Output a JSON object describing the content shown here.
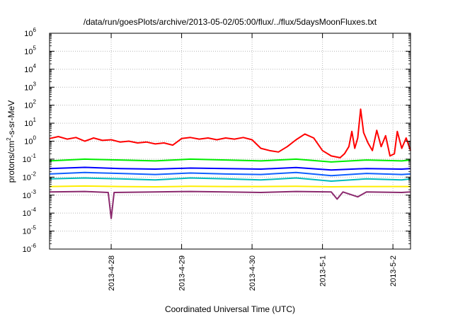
{
  "chart_data": {
    "type": "line",
    "title": "/data/run/goesPlots/archive/2013-05-02/05:00/flux/../flux/5daysMoonFluxes.txt",
    "xlabel": "Coordinated Universal Time (UTC)",
    "ylabel_parts": [
      "protons/cm",
      "2",
      "-s-sr-MeV"
    ],
    "yscale": "log",
    "ylim_exp": [
      -6,
      6
    ],
    "y_ticks": [
      {
        "base": "10",
        "exp": "-6",
        "value": -6
      },
      {
        "base": "10",
        "exp": "-5",
        "value": -5
      },
      {
        "base": "10",
        "exp": "-4",
        "value": -4
      },
      {
        "base": "10",
        "exp": "-3",
        "value": -3
      },
      {
        "base": "10",
        "exp": "-2",
        "value": -2
      },
      {
        "base": "10",
        "exp": "-1",
        "value": -1
      },
      {
        "base": "10",
        "exp": "0",
        "value": 0
      },
      {
        "base": "10",
        "exp": "1",
        "value": 1
      },
      {
        "base": "10",
        "exp": "2",
        "value": 2
      },
      {
        "base": "10",
        "exp": "3",
        "value": 3
      },
      {
        "base": "10",
        "exp": "4",
        "value": 4
      },
      {
        "base": "10",
        "exp": "5",
        "value": 5
      },
      {
        "base": "10",
        "exp": "6",
        "value": 6
      }
    ],
    "xlim": [
      "2013-04-27T03:00",
      "2013-05-02T06:00"
    ],
    "x_ticks": [
      {
        "label": "2013-4-28",
        "value": "2013-04-28T00:00"
      },
      {
        "label": "2013-4-29",
        "value": "2013-04-29T00:00"
      },
      {
        "label": "2013-4-30",
        "value": "2013-04-30T00:00"
      },
      {
        "label": "2013-5-1",
        "value": "2013-05-01T00:00"
      },
      {
        "label": "2013-5-2",
        "value": "2013-05-02T00:00"
      }
    ],
    "grid": true,
    "legend": "none",
    "series": [
      {
        "color": "#ff0000",
        "points": [
          [
            "2013-04-27T03:00",
            1.4
          ],
          [
            "2013-04-27T06:00",
            1.8
          ],
          [
            "2013-04-27T09:00",
            1.3
          ],
          [
            "2013-04-27T12:00",
            1.6
          ],
          [
            "2013-04-27T15:00",
            1.0
          ],
          [
            "2013-04-27T18:00",
            1.5
          ],
          [
            "2013-04-27T21:00",
            1.1
          ],
          [
            "2013-04-28T00:00",
            1.2
          ],
          [
            "2013-04-28T03:00",
            0.9
          ],
          [
            "2013-04-28T06:00",
            1.0
          ],
          [
            "2013-04-28T09:00",
            0.8
          ],
          [
            "2013-04-28T12:00",
            0.9
          ],
          [
            "2013-04-28T15:00",
            0.7
          ],
          [
            "2013-04-28T18:00",
            0.8
          ],
          [
            "2013-04-28T21:00",
            0.6
          ],
          [
            "2013-04-29T00:00",
            1.4
          ],
          [
            "2013-04-29T03:00",
            1.6
          ],
          [
            "2013-04-29T06:00",
            1.3
          ],
          [
            "2013-04-29T09:00",
            1.5
          ],
          [
            "2013-04-29T12:00",
            1.2
          ],
          [
            "2013-04-29T15:00",
            1.5
          ],
          [
            "2013-04-29T18:00",
            1.3
          ],
          [
            "2013-04-29T21:00",
            1.6
          ],
          [
            "2013-04-30T00:00",
            1.2
          ],
          [
            "2013-04-30T03:00",
            0.4
          ],
          [
            "2013-04-30T06:00",
            0.3
          ],
          [
            "2013-04-30T09:00",
            0.25
          ],
          [
            "2013-04-30T12:00",
            0.5
          ],
          [
            "2013-04-30T15:00",
            1.2
          ],
          [
            "2013-04-30T18:00",
            2.5
          ],
          [
            "2013-04-30T21:00",
            1.5
          ],
          [
            "2013-05-01T00:00",
            0.3
          ],
          [
            "2013-05-01T03:00",
            0.15
          ],
          [
            "2013-05-01T06:00",
            0.12
          ],
          [
            "2013-05-01T07:30",
            0.2
          ],
          [
            "2013-05-01T09:00",
            0.5
          ],
          [
            "2013-05-01T10:00",
            3.5
          ],
          [
            "2013-05-01T11:00",
            0.4
          ],
          [
            "2013-05-01T12:00",
            1.5
          ],
          [
            "2013-05-01T13:00",
            60
          ],
          [
            "2013-05-01T14:00",
            3.0
          ],
          [
            "2013-05-01T15:30",
            0.8
          ],
          [
            "2013-05-01T17:00",
            0.3
          ],
          [
            "2013-05-01T18:30",
            4.0
          ],
          [
            "2013-05-01T20:00",
            0.5
          ],
          [
            "2013-05-01T21:30",
            2.0
          ],
          [
            "2013-05-01T23:00",
            0.15
          ],
          [
            "2013-05-02T00:30",
            0.2
          ],
          [
            "2013-05-02T01:30",
            3.5
          ],
          [
            "2013-05-02T03:00",
            0.4
          ],
          [
            "2013-05-02T04:30",
            1.5
          ],
          [
            "2013-05-02T06:00",
            0.3
          ]
        ]
      },
      {
        "color": "#00ee00",
        "points": [
          [
            "2013-04-27T03:00",
            0.08
          ],
          [
            "2013-04-27T15:00",
            0.1
          ],
          [
            "2013-04-28T03:00",
            0.09
          ],
          [
            "2013-04-28T15:00",
            0.08
          ],
          [
            "2013-04-29T03:00",
            0.1
          ],
          [
            "2013-04-29T15:00",
            0.09
          ],
          [
            "2013-04-30T03:00",
            0.08
          ],
          [
            "2013-04-30T15:00",
            0.1
          ],
          [
            "2013-05-01T03:00",
            0.07
          ],
          [
            "2013-05-01T15:00",
            0.09
          ],
          [
            "2013-05-02T03:00",
            0.08
          ],
          [
            "2013-05-02T06:00",
            0.09
          ]
        ]
      },
      {
        "color": "#0000ff",
        "points": [
          [
            "2013-04-27T03:00",
            0.03
          ],
          [
            "2013-04-27T15:00",
            0.035
          ],
          [
            "2013-04-28T03:00",
            0.03
          ],
          [
            "2013-04-28T15:00",
            0.028
          ],
          [
            "2013-04-29T03:00",
            0.032
          ],
          [
            "2013-04-29T15:00",
            0.03
          ],
          [
            "2013-04-30T03:00",
            0.028
          ],
          [
            "2013-04-30T15:00",
            0.034
          ],
          [
            "2013-05-01T03:00",
            0.025
          ],
          [
            "2013-05-01T15:00",
            0.03
          ],
          [
            "2013-05-02T03:00",
            0.028
          ],
          [
            "2013-05-02T06:00",
            0.03
          ]
        ]
      },
      {
        "color": "#1060ff",
        "points": [
          [
            "2013-04-27T03:00",
            0.015
          ],
          [
            "2013-04-27T15:00",
            0.018
          ],
          [
            "2013-04-28T03:00",
            0.016
          ],
          [
            "2013-04-28T15:00",
            0.014
          ],
          [
            "2013-04-29T03:00",
            0.017
          ],
          [
            "2013-04-29T15:00",
            0.015
          ],
          [
            "2013-04-30T03:00",
            0.014
          ],
          [
            "2013-04-30T15:00",
            0.018
          ],
          [
            "2013-05-01T03:00",
            0.012
          ],
          [
            "2013-05-01T15:00",
            0.016
          ],
          [
            "2013-05-02T03:00",
            0.014
          ],
          [
            "2013-05-02T06:00",
            0.015
          ]
        ]
      },
      {
        "color": "#00bbbb",
        "points": [
          [
            "2013-04-27T03:00",
            0.008
          ],
          [
            "2013-04-27T15:00",
            0.009
          ],
          [
            "2013-04-28T03:00",
            0.008
          ],
          [
            "2013-04-28T15:00",
            0.007
          ],
          [
            "2013-04-29T03:00",
            0.009
          ],
          [
            "2013-04-29T15:00",
            0.008
          ],
          [
            "2013-04-30T03:00",
            0.007
          ],
          [
            "2013-04-30T15:00",
            0.009
          ],
          [
            "2013-05-01T03:00",
            0.006
          ],
          [
            "2013-05-01T15:00",
            0.008
          ],
          [
            "2013-05-02T03:00",
            0.007
          ],
          [
            "2013-05-02T06:00",
            0.008
          ]
        ]
      },
      {
        "color": "#ffee00",
        "points": [
          [
            "2013-04-27T03:00",
            0.003
          ],
          [
            "2013-04-27T15:00",
            0.0032
          ],
          [
            "2013-04-28T03:00",
            0.003
          ],
          [
            "2013-04-28T15:00",
            0.0029
          ],
          [
            "2013-04-29T03:00",
            0.0031
          ],
          [
            "2013-04-29T15:00",
            0.003
          ],
          [
            "2013-04-30T03:00",
            0.003
          ],
          [
            "2013-04-30T15:00",
            0.0031
          ],
          [
            "2013-05-01T03:00",
            0.0029
          ],
          [
            "2013-05-01T15:00",
            0.003
          ],
          [
            "2013-05-02T03:00",
            0.003
          ],
          [
            "2013-05-02T06:00",
            0.003
          ]
        ]
      },
      {
        "color": "#8b2a6e",
        "points": [
          [
            "2013-04-27T03:00",
            0.0015
          ],
          [
            "2013-04-27T15:00",
            0.0016
          ],
          [
            "2013-04-27T23:00",
            0.0014
          ],
          [
            "2013-04-28T00:00",
            5e-05
          ],
          [
            "2013-04-28T01:00",
            0.0014
          ],
          [
            "2013-04-28T15:00",
            0.0015
          ],
          [
            "2013-04-29T03:00",
            0.0016
          ],
          [
            "2013-04-29T15:00",
            0.0015
          ],
          [
            "2013-04-30T03:00",
            0.0014
          ],
          [
            "2013-04-30T15:00",
            0.0016
          ],
          [
            "2013-05-01T03:00",
            0.0015
          ],
          [
            "2013-05-01T05:00",
            0.0006
          ],
          [
            "2013-05-01T07:00",
            0.0015
          ],
          [
            "2013-05-01T12:00",
            0.0008
          ],
          [
            "2013-05-01T15:00",
            0.0015
          ],
          [
            "2013-05-02T03:00",
            0.0014
          ],
          [
            "2013-05-02T06:00",
            0.0015
          ]
        ]
      }
    ]
  }
}
